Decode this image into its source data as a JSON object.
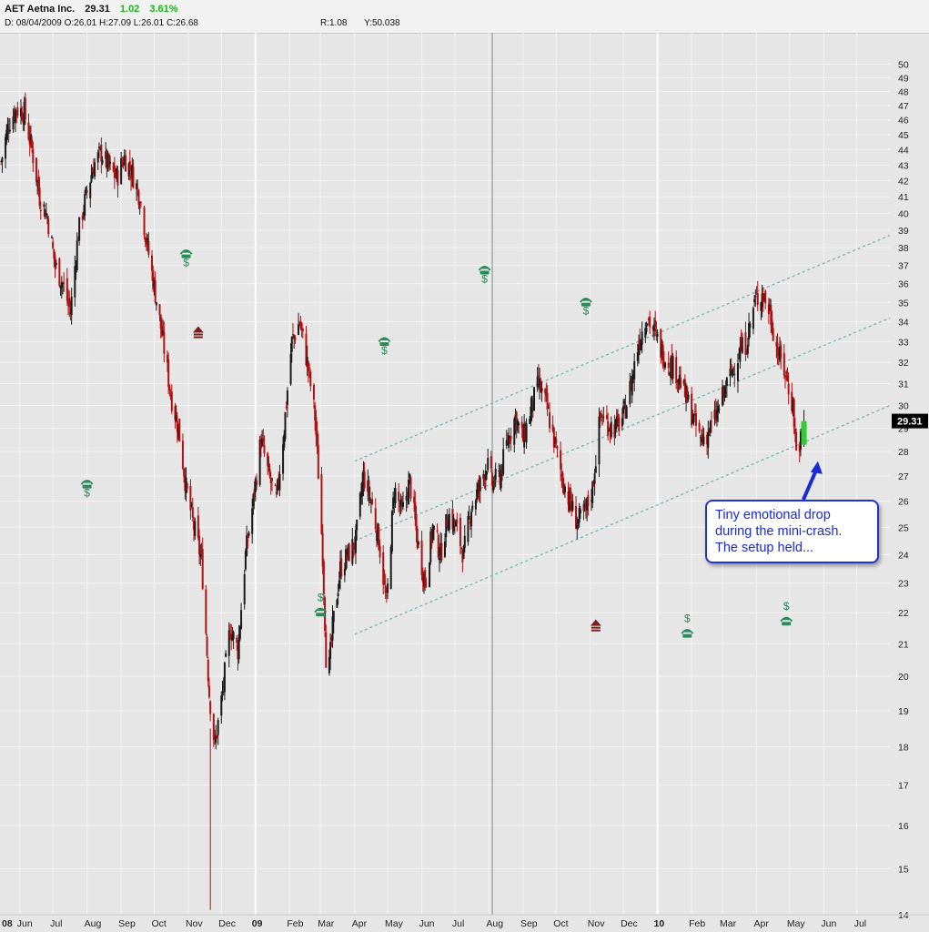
{
  "header": {
    "symbol": "AET",
    "name": "Aetna Inc.",
    "last": "29.31",
    "change": "1.02",
    "change_pct": "3.61%",
    "date": "D: 08/04/2009",
    "open": "O:26.01",
    "high": "H:27.09",
    "low": "L:26.01",
    "close": "C:26.68",
    "r": "R:1.08",
    "y": "Y:50.038"
  },
  "colors": {
    "background": "#e6e6e6",
    "grid": "#f4f4f4",
    "up_candle": "#1a1a1a",
    "down_candle": "#b01010",
    "last_candle": "#33cc33",
    "channel": "#7fb3b0",
    "icon_green": "#2a8a5a",
    "icon_dark_red": "#7a1f1f",
    "callout_text": "#1a2bd6"
  },
  "callout": {
    "lines": [
      "Tiny emotional drop",
      "during the mini-crash.",
      "The setup held..."
    ]
  },
  "price_label": "29.31",
  "chart_data": {
    "type": "candlestick",
    "title": "AET Aetna Inc.",
    "interval": "daily",
    "y_scale": "log",
    "ylim": [
      14,
      51
    ],
    "y_ticks": [
      14,
      15,
      16,
      17,
      18,
      19,
      20,
      21,
      22,
      23,
      24,
      25,
      26,
      27,
      28,
      29,
      30,
      31,
      32,
      33,
      34,
      35,
      36,
      37,
      38,
      39,
      40,
      41,
      42,
      43,
      44,
      45,
      46,
      47,
      48,
      49,
      50
    ],
    "x_range": [
      "2008-05-14",
      "2010-07-31"
    ],
    "x_ticks": [
      {
        "date": "2008-06-01",
        "label": "Jun"
      },
      {
        "date": "2008-07-01",
        "label": "Jul"
      },
      {
        "date": "2008-08-01",
        "label": "Aug"
      },
      {
        "date": "2008-09-01",
        "label": "Sep"
      },
      {
        "date": "2008-10-01",
        "label": "Oct"
      },
      {
        "date": "2008-11-01",
        "label": "Nov"
      },
      {
        "date": "2008-12-01",
        "label": "Dec"
      },
      {
        "date": "2009-01-01",
        "label": "09"
      },
      {
        "date": "2009-02-01",
        "label": "Feb"
      },
      {
        "date": "2009-03-01",
        "label": "Mar"
      },
      {
        "date": "2009-04-01",
        "label": "Apr"
      },
      {
        "date": "2009-05-01",
        "label": "May"
      },
      {
        "date": "2009-06-01",
        "label": "Jun"
      },
      {
        "date": "2009-07-01",
        "label": "Jul"
      },
      {
        "date": "2009-08-01",
        "label": "Aug"
      },
      {
        "date": "2009-09-01",
        "label": "Sep"
      },
      {
        "date": "2009-10-01",
        "label": "Oct"
      },
      {
        "date": "2009-11-01",
        "label": "Nov"
      },
      {
        "date": "2009-12-01",
        "label": "Dec"
      },
      {
        "date": "2010-01-01",
        "label": "10"
      },
      {
        "date": "2010-02-01",
        "label": "Feb"
      },
      {
        "date": "2010-03-01",
        "label": "Mar"
      },
      {
        "date": "2010-04-01",
        "label": "Apr"
      },
      {
        "date": "2010-05-01",
        "label": "May"
      },
      {
        "date": "2010-06-01",
        "label": "Jun"
      },
      {
        "date": "2010-07-01",
        "label": "Jul"
      }
    ],
    "first_tick_label": "08",
    "year_markers": [
      "2009-01-01",
      "2010-01-01"
    ],
    "crosshair_date": "2009-08-04",
    "price_path": [
      {
        "date": "2008-05-15",
        "close": 43.2
      },
      {
        "date": "2008-05-22",
        "close": 45.8
      },
      {
        "date": "2008-05-29",
        "close": 46.8
      },
      {
        "date": "2008-06-05",
        "close": 46.5
      },
      {
        "date": "2008-06-12",
        "close": 44.0
      },
      {
        "date": "2008-06-19",
        "close": 41.0
      },
      {
        "date": "2008-06-26",
        "close": 39.8
      },
      {
        "date": "2008-07-03",
        "close": 37.0
      },
      {
        "date": "2008-07-10",
        "close": 36.0
      },
      {
        "date": "2008-07-17",
        "close": 34.5
      },
      {
        "date": "2008-07-24",
        "close": 38.8
      },
      {
        "date": "2008-07-31",
        "close": 41.0
      },
      {
        "date": "2008-08-07",
        "close": 43.0
      },
      {
        "date": "2008-08-14",
        "close": 43.8
      },
      {
        "date": "2008-08-21",
        "close": 42.8
      },
      {
        "date": "2008-08-28",
        "close": 42.2
      },
      {
        "date": "2008-09-04",
        "close": 43.5
      },
      {
        "date": "2008-09-11",
        "close": 42.5
      },
      {
        "date": "2008-09-18",
        "close": 41.0
      },
      {
        "date": "2008-09-25",
        "close": 38.0
      },
      {
        "date": "2008-10-02",
        "close": 35.5
      },
      {
        "date": "2008-10-09",
        "close": 33.0
      },
      {
        "date": "2008-10-16",
        "close": 30.5
      },
      {
        "date": "2008-10-23",
        "close": 29.0
      },
      {
        "date": "2008-10-30",
        "close": 26.5
      },
      {
        "date": "2008-11-06",
        "close": 25.0
      },
      {
        "date": "2008-11-13",
        "close": 23.8
      },
      {
        "date": "2008-11-20",
        "close": 19.5
      },
      {
        "date": "2008-11-25",
        "close": 18.0
      },
      {
        "date": "2008-12-02",
        "close": 19.5
      },
      {
        "date": "2008-12-09",
        "close": 21.5
      },
      {
        "date": "2008-12-16",
        "close": 20.8
      },
      {
        "date": "2008-12-23",
        "close": 24.0
      },
      {
        "date": "2008-12-30",
        "close": 26.0
      },
      {
        "date": "2009-01-06",
        "close": 28.5
      },
      {
        "date": "2009-01-13",
        "close": 27.0
      },
      {
        "date": "2009-01-20",
        "close": 26.0
      },
      {
        "date": "2009-01-27",
        "close": 29.0
      },
      {
        "date": "2009-02-03",
        "close": 33.0
      },
      {
        "date": "2009-02-10",
        "close": 34.0
      },
      {
        "date": "2009-02-17",
        "close": 32.0
      },
      {
        "date": "2009-02-24",
        "close": 29.5
      },
      {
        "date": "2009-03-03",
        "close": 24.0
      },
      {
        "date": "2009-03-07",
        "close": 19.5
      },
      {
        "date": "2009-03-12",
        "close": 21.5
      },
      {
        "date": "2009-03-19",
        "close": 23.5
      },
      {
        "date": "2009-03-26",
        "close": 24.0
      },
      {
        "date": "2009-04-02",
        "close": 24.5
      },
      {
        "date": "2009-04-09",
        "close": 27.0
      },
      {
        "date": "2009-04-16",
        "close": 26.0
      },
      {
        "date": "2009-04-23",
        "close": 24.5
      },
      {
        "date": "2009-04-30",
        "close": 22.2
      },
      {
        "date": "2009-05-07",
        "close": 26.5
      },
      {
        "date": "2009-05-14",
        "close": 25.5
      },
      {
        "date": "2009-05-21",
        "close": 26.8
      },
      {
        "date": "2009-05-28",
        "close": 24.5
      },
      {
        "date": "2009-06-04",
        "close": 23.0
      },
      {
        "date": "2009-06-11",
        "close": 25.0
      },
      {
        "date": "2009-06-18",
        "close": 24.0
      },
      {
        "date": "2009-06-25",
        "close": 25.5
      },
      {
        "date": "2009-07-02",
        "close": 25.0
      },
      {
        "date": "2009-07-09",
        "close": 24.0
      },
      {
        "date": "2009-07-16",
        "close": 25.8
      },
      {
        "date": "2009-07-23",
        "close": 26.5
      },
      {
        "date": "2009-07-30",
        "close": 27.5
      },
      {
        "date": "2009-08-04",
        "close": 26.68
      },
      {
        "date": "2009-08-11",
        "close": 27.0
      },
      {
        "date": "2009-08-18",
        "close": 28.5
      },
      {
        "date": "2009-08-25",
        "close": 29.5
      },
      {
        "date": "2009-09-01",
        "close": 28.5
      },
      {
        "date": "2009-09-08",
        "close": 29.8
      },
      {
        "date": "2009-09-15",
        "close": 31.0
      },
      {
        "date": "2009-09-22",
        "close": 30.0
      },
      {
        "date": "2009-09-29",
        "close": 28.5
      },
      {
        "date": "2009-10-06",
        "close": 27.0
      },
      {
        "date": "2009-10-13",
        "close": 26.0
      },
      {
        "date": "2009-10-20",
        "close": 25.2
      },
      {
        "date": "2009-10-27",
        "close": 25.5
      },
      {
        "date": "2009-11-03",
        "close": 26.5
      },
      {
        "date": "2009-11-10",
        "close": 29.5
      },
      {
        "date": "2009-11-17",
        "close": 29.2
      },
      {
        "date": "2009-11-24",
        "close": 29.0
      },
      {
        "date": "2009-12-01",
        "close": 29.5
      },
      {
        "date": "2009-12-08",
        "close": 31.0
      },
      {
        "date": "2009-12-15",
        "close": 33.0
      },
      {
        "date": "2009-12-22",
        "close": 34.3
      },
      {
        "date": "2009-12-29",
        "close": 33.5
      },
      {
        "date": "2010-01-05",
        "close": 32.5
      },
      {
        "date": "2010-01-12",
        "close": 32.0
      },
      {
        "date": "2010-01-19",
        "close": 31.5
      },
      {
        "date": "2010-01-26",
        "close": 30.5
      },
      {
        "date": "2010-02-02",
        "close": 29.5
      },
      {
        "date": "2010-02-09",
        "close": 28.5
      },
      {
        "date": "2010-02-16",
        "close": 28.8
      },
      {
        "date": "2010-02-23",
        "close": 29.5
      },
      {
        "date": "2010-03-02",
        "close": 30.5
      },
      {
        "date": "2010-03-09",
        "close": 31.5
      },
      {
        "date": "2010-03-16",
        "close": 32.5
      },
      {
        "date": "2010-03-23",
        "close": 33.0
      },
      {
        "date": "2010-03-30",
        "close": 35.0
      },
      {
        "date": "2010-04-06",
        "close": 35.5
      },
      {
        "date": "2010-04-13",
        "close": 34.5
      },
      {
        "date": "2010-04-20",
        "close": 32.5
      },
      {
        "date": "2010-04-27",
        "close": 31.5
      },
      {
        "date": "2010-05-04",
        "close": 30.0
      },
      {
        "date": "2010-05-07",
        "close": 28.0
      },
      {
        "date": "2010-05-11",
        "close": 28.5
      },
      {
        "date": "2010-05-14",
        "close": 29.31
      }
    ],
    "last_candle": {
      "date": "2010-05-14",
      "open": 28.29,
      "close": 29.31,
      "high": 29.8,
      "low": 28.2
    },
    "channel_lines": [
      {
        "name": "upper",
        "start": {
          "date": "2009-04-01",
          "price": 27.6
        },
        "end": {
          "date": "2010-07-31",
          "price": 38.7
        }
      },
      {
        "name": "middle",
        "start": {
          "date": "2009-04-01",
          "price": 24.5
        },
        "end": {
          "date": "2010-07-31",
          "price": 34.2
        }
      },
      {
        "name": "lower",
        "start": {
          "date": "2009-04-01",
          "price": 21.3
        },
        "end": {
          "date": "2010-07-31",
          "price": 30.0
        }
      }
    ],
    "event_markers": [
      {
        "type": "phone-dollar",
        "date": "2008-08-01",
        "price": 26.5
      },
      {
        "type": "phone-dollar",
        "date": "2008-10-30",
        "price": 37.4
      },
      {
        "type": "up-arrow",
        "date": "2008-11-10",
        "price": 33.5
      },
      {
        "type": "dollar-phone",
        "date": "2009-03-01",
        "price": 22.3
      },
      {
        "type": "phone-dollar",
        "date": "2009-04-28",
        "price": 32.8
      },
      {
        "type": "phone-dollar",
        "date": "2009-07-28",
        "price": 36.5
      },
      {
        "type": "phone-dollar",
        "date": "2009-10-28",
        "price": 34.8
      },
      {
        "type": "up-arrow",
        "date": "2009-11-06",
        "price": 21.6
      },
      {
        "type": "dollar-phone",
        "date": "2010-01-28",
        "price": 21.6
      },
      {
        "type": "dollar-phone",
        "date": "2010-04-28",
        "price": 22.0
      }
    ]
  }
}
